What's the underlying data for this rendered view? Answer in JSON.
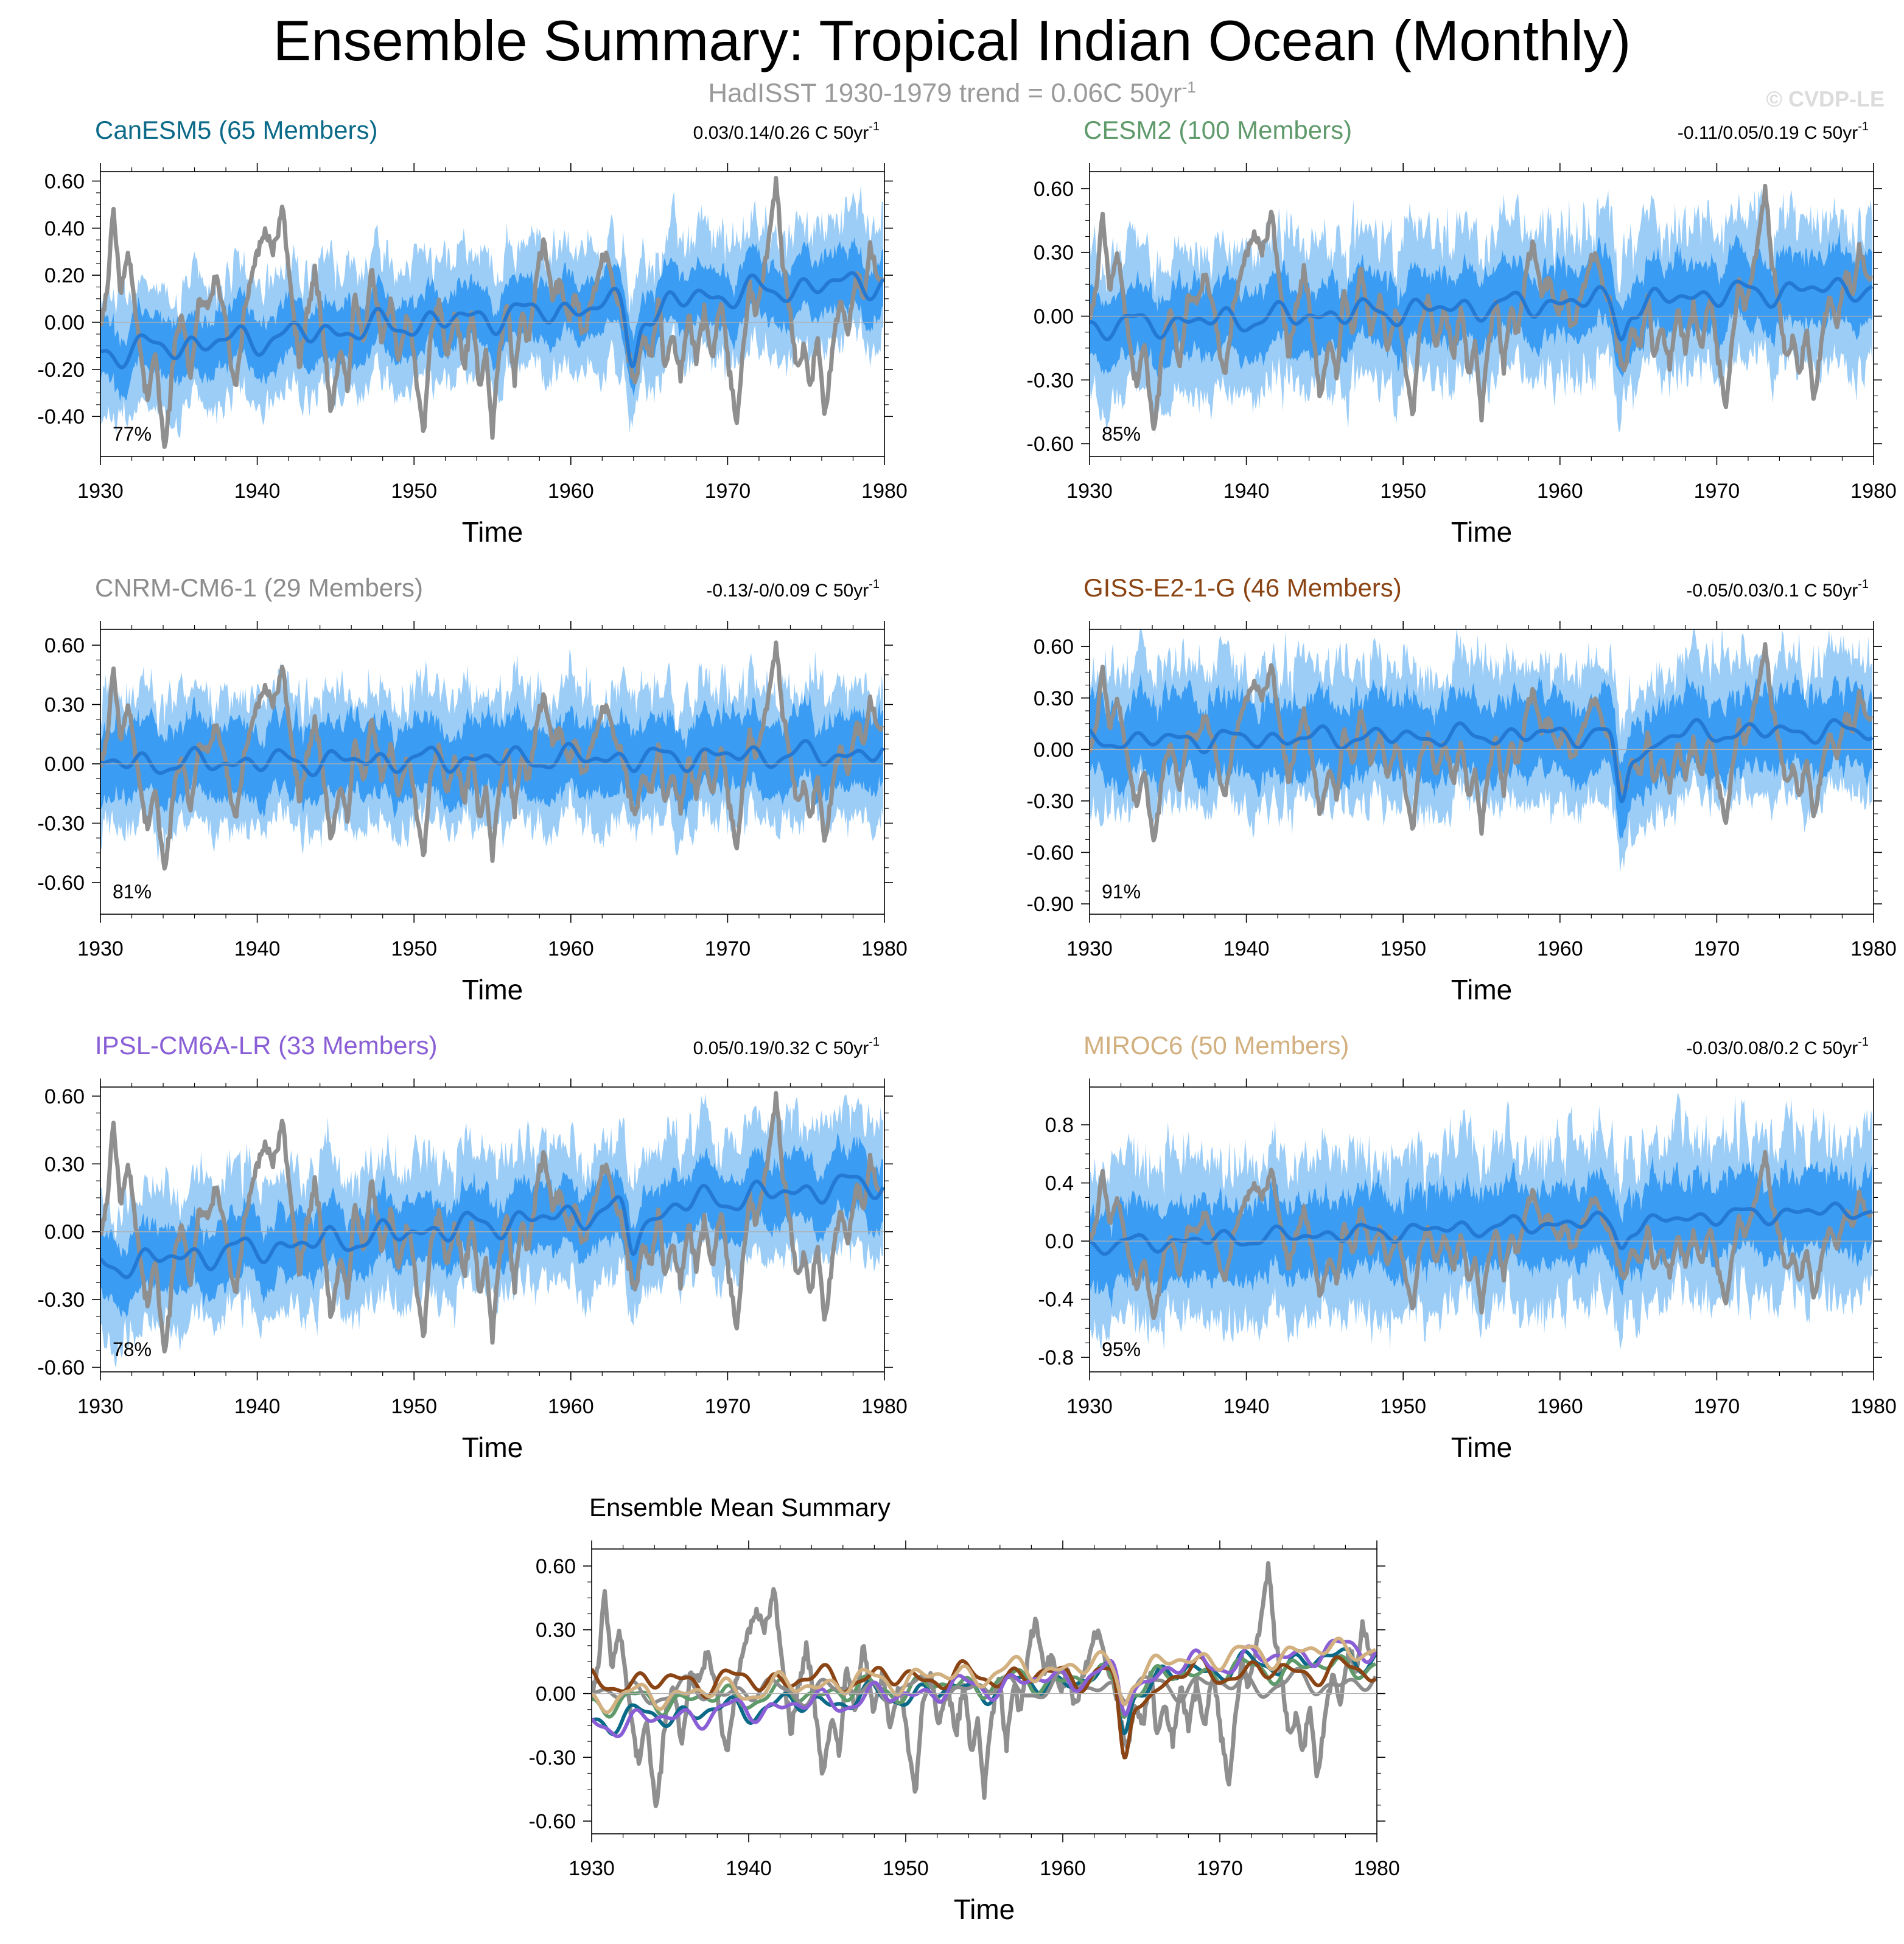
{
  "title": "Ensemble Summary: Tropical Indian Ocean (Monthly)",
  "subtitle": "HadISST 1930-1979 trend = 0.06C 50yr",
  "subtitle_sup": "-1",
  "watermark": "© CVDP-LE",
  "colors": {
    "obs": "#8f8f8f",
    "spread_outer": "#9ccdf7",
    "spread_inner": "#3a9cf2",
    "ens_mean": "#2379d4"
  },
  "chart_data": [
    {
      "type": "line",
      "id": "canesm5",
      "title": "CanESM5 (65 Members)",
      "title_color": "#0b6a88",
      "trend_text": "0.03/0.14/0.26 C 50yr",
      "trend_sup": "-1",
      "percent": "77%",
      "xlabel": "Time",
      "xlim": [
        1930,
        1980
      ],
      "xticks": [
        "1930",
        "1940",
        "1950",
        "1960",
        "1970",
        "1980"
      ],
      "ylim": [
        -0.57,
        0.64
      ],
      "yticks": [
        "0.60",
        "0.40",
        "0.20",
        "0.00",
        "-0.20",
        "-0.40"
      ],
      "ytick_values": [
        0.6,
        0.4,
        0.2,
        0,
        -0.2,
        -0.4
      ],
      "seed": 11,
      "mean_start": -0.13,
      "mean_end": 0.18,
      "half_inner": 0.12,
      "half_outer": 0.26,
      "dip": -0.2
    },
    {
      "type": "line",
      "id": "cesm2",
      "title": "CESM2 (100 Members)",
      "title_color": "#5f9a6b",
      "trend_text": "-0.11/0.05/0.19 C 50yr",
      "trend_sup": "-1",
      "percent": "85%",
      "xlabel": "Time",
      "xlim": [
        1930,
        1980
      ],
      "xticks": [
        "1930",
        "1940",
        "1950",
        "1960",
        "1970",
        "1980"
      ],
      "ylim": [
        -0.66,
        0.68
      ],
      "yticks": [
        "0.60",
        "0.30",
        "0.00",
        "-0.30",
        "-0.60"
      ],
      "ytick_values": [
        0.6,
        0.3,
        0,
        -0.3,
        -0.6
      ],
      "seed": 23,
      "mean_start": -0.05,
      "mean_end": 0.14,
      "half_inner": 0.16,
      "half_outer": 0.34,
      "dip": -0.14
    },
    {
      "type": "line",
      "id": "cnrm",
      "title": "CNRM-CM6-1 (29 Members)",
      "title_color": "#8c8c8c",
      "trend_text": "-0.13/-0/0.09 C 50yr",
      "trend_sup": "-1",
      "percent": "81%",
      "xlabel": "Time",
      "xlim": [
        1930,
        1980
      ],
      "xticks": [
        "1930",
        "1940",
        "1950",
        "1960",
        "1970",
        "1980"
      ],
      "ylim": [
        -0.76,
        0.68
      ],
      "yticks": [
        "0.60",
        "0.30",
        "0.00",
        "-0.30",
        "-0.60"
      ],
      "ytick_values": [
        0.6,
        0.3,
        0,
        -0.3,
        -0.6
      ],
      "seed": 37,
      "mean_start": 0.0,
      "mean_end": 0.05,
      "half_inner": 0.18,
      "half_outer": 0.33,
      "dip": -0.02
    },
    {
      "type": "line",
      "id": "giss",
      "title": "GISS-E2-1-G (46 Members)",
      "title_color": "#8b4413",
      "trend_text": "-0.05/0.03/0.1 C 50yr",
      "trend_sup": "-1",
      "percent": "91%",
      "xlabel": "Time",
      "xlim": [
        1930,
        1980
      ],
      "xticks": [
        "1930",
        "1940",
        "1950",
        "1960",
        "1970",
        "1980"
      ],
      "ylim": [
        -0.96,
        0.7
      ],
      "yticks": [
        "0.60",
        "0.30",
        "0.00",
        "-0.30",
        "-0.60",
        "-0.90"
      ],
      "ytick_values": [
        0.6,
        0.3,
        0,
        -0.3,
        -0.6,
        -0.9
      ],
      "seed": 41,
      "mean_start": 0.05,
      "mean_end": 0.11,
      "half_inner": 0.22,
      "half_outer": 0.4,
      "dip": -0.38
    },
    {
      "type": "line",
      "id": "ipsl",
      "title": "IPSL-CM6A-LR (33 Members)",
      "title_color": "#8a5fd6",
      "trend_text": "0.05/0.19/0.32 C 50yr",
      "trend_sup": "-1",
      "percent": "78%",
      "xlabel": "Time",
      "xlim": [
        1930,
        1980
      ],
      "xticks": [
        "1930",
        "1940",
        "1950",
        "1960",
        "1970",
        "1980"
      ],
      "ylim": [
        -0.62,
        0.64
      ],
      "yticks": [
        "0.60",
        "0.30",
        "0.00",
        "-0.30",
        "-0.60"
      ],
      "ytick_values": [
        0.6,
        0.3,
        0,
        -0.3,
        -0.6
      ],
      "seed": 53,
      "mean_start": -0.15,
      "mean_end": 0.22,
      "half_inner": 0.14,
      "half_outer": 0.3,
      "dip": -0.16
    },
    {
      "type": "line",
      "id": "miroc6",
      "title": "MIROC6 (50 Members)",
      "title_color": "#d2b080",
      "trend_text": "-0.03/0.08/0.2 C 50yr",
      "trend_sup": "-1",
      "percent": "95%",
      "xlabel": "Time",
      "xlim": [
        1930,
        1980
      ],
      "xticks": [
        "1930",
        "1940",
        "1950",
        "1960",
        "1970",
        "1980"
      ],
      "ylim": [
        -0.9,
        1.06
      ],
      "yticks": [
        "0.8",
        "0.4",
        "0.0",
        "-0.4",
        "-0.8"
      ],
      "ytick_values": [
        0.8,
        0.4,
        0,
        -0.4,
        -0.8
      ],
      "seed": 67,
      "mean_start": -0.03,
      "mean_end": 0.22,
      "half_inner": 0.26,
      "half_outer": 0.55,
      "dip": -0.15
    },
    {
      "type": "line",
      "id": "summary",
      "title": "Ensemble Mean Summary",
      "title_color": "#000000",
      "xlabel": "Time",
      "xlim": [
        1930,
        1980
      ],
      "xticks": [
        "1930",
        "1940",
        "1950",
        "1960",
        "1970",
        "1980"
      ],
      "ylim": [
        -0.66,
        0.68
      ],
      "yticks": [
        "0.60",
        "0.30",
        "0.00",
        "-0.30",
        "-0.60"
      ],
      "ytick_values": [
        0.6,
        0.3,
        0,
        -0.3,
        -0.6
      ],
      "series": [
        {
          "name": "HadISST",
          "color": "#8f8f8f"
        },
        {
          "name": "CanESM5",
          "color": "#0b6a88"
        },
        {
          "name": "CESM2",
          "color": "#5f9a6b"
        },
        {
          "name": "CNRM-CM6-1",
          "color": "#8c8c8c"
        },
        {
          "name": "GISS-E2-1-G",
          "color": "#8b4413"
        },
        {
          "name": "IPSL-CM6A-LR",
          "color": "#8a5fd6"
        },
        {
          "name": "MIROC6",
          "color": "#d2b080"
        }
      ]
    }
  ],
  "obs_anchors": [
    [
      1930.0,
      0.0
    ],
    [
      1930.4,
      0.1
    ],
    [
      1930.8,
      0.48
    ],
    [
      1931.3,
      0.12
    ],
    [
      1931.8,
      0.3
    ],
    [
      1932.4,
      -0.05
    ],
    [
      1933.0,
      -0.33
    ],
    [
      1933.5,
      -0.12
    ],
    [
      1934.1,
      -0.56
    ],
    [
      1934.7,
      -0.1
    ],
    [
      1935.2,
      0.05
    ],
    [
      1935.7,
      -0.24
    ],
    [
      1936.3,
      0.12
    ],
    [
      1936.8,
      0.05
    ],
    [
      1937.4,
      0.2
    ],
    [
      1938.0,
      0.0
    ],
    [
      1938.6,
      -0.3
    ],
    [
      1939.2,
      0.05
    ],
    [
      1939.8,
      0.25
    ],
    [
      1940.5,
      0.4
    ],
    [
      1941.0,
      0.3
    ],
    [
      1941.6,
      0.5
    ],
    [
      1942.2,
      0.1
    ],
    [
      1942.7,
      -0.2
    ],
    [
      1943.2,
      0.05
    ],
    [
      1943.7,
      0.22
    ],
    [
      1944.2,
      -0.05
    ],
    [
      1944.7,
      -0.4
    ],
    [
      1945.3,
      -0.1
    ],
    [
      1945.8,
      -0.28
    ],
    [
      1946.2,
      0.14
    ],
    [
      1946.8,
      -0.1
    ],
    [
      1947.3,
      0.25
    ],
    [
      1947.9,
      -0.08
    ],
    [
      1948.5,
      0.1
    ],
    [
      1949.0,
      -0.15
    ],
    [
      1949.6,
      0.05
    ],
    [
      1950.2,
      -0.28
    ],
    [
      1950.6,
      -0.48
    ],
    [
      1951.0,
      -0.1
    ],
    [
      1951.6,
      0.08
    ],
    [
      1952.1,
      -0.15
    ],
    [
      1952.6,
      0.05
    ],
    [
      1953.2,
      -0.2
    ],
    [
      1953.7,
      0.05
    ],
    [
      1954.2,
      -0.3
    ],
    [
      1954.6,
      -0.1
    ],
    [
      1955.0,
      -0.48
    ],
    [
      1955.4,
      -0.15
    ],
    [
      1955.9,
      0.1
    ],
    [
      1956.4,
      -0.25
    ],
    [
      1956.9,
      0.05
    ],
    [
      1957.3,
      -0.1
    ],
    [
      1957.8,
      0.2
    ],
    [
      1958.3,
      0.35
    ],
    [
      1958.8,
      0.1
    ],
    [
      1959.3,
      0.2
    ],
    [
      1959.8,
      0.0
    ],
    [
      1960.3,
      0.12
    ],
    [
      1960.8,
      -0.05
    ],
    [
      1961.3,
      0.08
    ],
    [
      1961.8,
      0.22
    ],
    [
      1962.3,
      0.3
    ],
    [
      1962.8,
      0.12
    ],
    [
      1963.3,
      0.05
    ],
    [
      1963.7,
      -0.15
    ],
    [
      1964.1,
      -0.25
    ],
    [
      1964.6,
      -0.05
    ],
    [
      1965.1,
      -0.15
    ],
    [
      1965.6,
      0.1
    ],
    [
      1966.0,
      -0.2
    ],
    [
      1966.5,
      -0.05
    ],
    [
      1967.0,
      -0.25
    ],
    [
      1967.5,
      0.05
    ],
    [
      1968.0,
      -0.15
    ],
    [
      1968.5,
      0.05
    ],
    [
      1969.0,
      -0.15
    ],
    [
      1969.6,
      0.1
    ],
    [
      1970.1,
      -0.2
    ],
    [
      1970.6,
      -0.45
    ],
    [
      1971.0,
      -0.1
    ],
    [
      1971.4,
      0.15
    ],
    [
      1971.8,
      0.05
    ],
    [
      1972.3,
      0.2
    ],
    [
      1972.8,
      0.45
    ],
    [
      1973.1,
      0.6
    ],
    [
      1973.5,
      0.25
    ],
    [
      1974.0,
      0.05
    ],
    [
      1974.4,
      -0.2
    ],
    [
      1974.9,
      -0.1
    ],
    [
      1975.3,
      -0.3
    ],
    [
      1975.7,
      -0.05
    ],
    [
      1976.2,
      -0.4
    ],
    [
      1976.7,
      -0.1
    ],
    [
      1977.2,
      0.1
    ],
    [
      1977.7,
      -0.05
    ],
    [
      1978.2,
      0.2
    ],
    [
      1978.7,
      0.1
    ],
    [
      1979.1,
      0.32
    ],
    [
      1979.5,
      0.2
    ],
    [
      1980.0,
      0.18
    ]
  ]
}
